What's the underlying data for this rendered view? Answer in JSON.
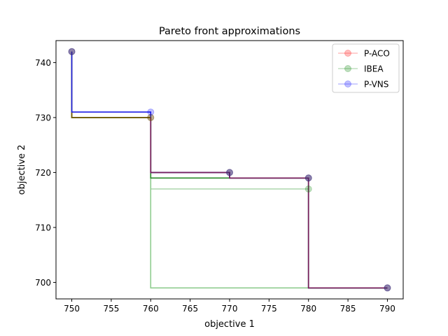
{
  "chart_data": {
    "type": "line",
    "title": "Pareto front approximations",
    "xlabel": "objective 1",
    "ylabel": "objective 2",
    "xlim": [
      748,
      792
    ],
    "ylim": [
      697,
      744
    ],
    "xticks": [
      750,
      755,
      760,
      765,
      770,
      775,
      780,
      785,
      790
    ],
    "yticks": [
      700,
      710,
      720,
      730,
      740
    ],
    "grid": false,
    "legend_position": "top-right",
    "step_lines": [
      {
        "color": "#b3d9b3",
        "points": [
          [
            750,
            742
          ],
          [
            750,
            730
          ],
          [
            760,
            730
          ],
          [
            760,
            717
          ],
          [
            780,
            717
          ],
          [
            780,
            699
          ],
          [
            790,
            699
          ]
        ]
      },
      {
        "color": "#8fcc8f",
        "points": [
          [
            750,
            742
          ],
          [
            750,
            730
          ],
          [
            760,
            730
          ],
          [
            760,
            699
          ],
          [
            780,
            699
          ],
          [
            780,
            699
          ],
          [
            790,
            699
          ]
        ]
      },
      {
        "color": "#2a8a2a",
        "points": [
          [
            750,
            742
          ],
          [
            750,
            730
          ],
          [
            760,
            730
          ],
          [
            760,
            719
          ],
          [
            780,
            719
          ],
          [
            780,
            699
          ],
          [
            790,
            699
          ]
        ]
      },
      {
        "color": "#7a5200",
        "points": [
          [
            750,
            742
          ],
          [
            750,
            730
          ],
          [
            760,
            730
          ],
          [
            760,
            720
          ],
          [
            770,
            720
          ],
          [
            770,
            719
          ],
          [
            780,
            719
          ],
          [
            780,
            699
          ],
          [
            790,
            699
          ]
        ]
      },
      {
        "color": "#1f1fe6",
        "points": [
          [
            750,
            742
          ],
          [
            750,
            731
          ],
          [
            760,
            731
          ],
          [
            760,
            720
          ],
          [
            770,
            720
          ],
          [
            770,
            719
          ],
          [
            780,
            719
          ],
          [
            780,
            699
          ],
          [
            790,
            699
          ]
        ]
      },
      {
        "color": "#7a1f5c",
        "points": [
          [
            760,
            730
          ],
          [
            760,
            720
          ],
          [
            770,
            720
          ],
          [
            770,
            719
          ],
          [
            780,
            719
          ],
          [
            780,
            699
          ],
          [
            790,
            699
          ]
        ]
      }
    ],
    "series": [
      {
        "name": "P-ACO",
        "color": "#ff0000",
        "points": [
          [
            750,
            742
          ],
          [
            760,
            730
          ],
          [
            770,
            720
          ],
          [
            780,
            719
          ],
          [
            790,
            699
          ]
        ]
      },
      {
        "name": "IBEA",
        "color": "#008000",
        "points": [
          [
            750,
            742
          ],
          [
            760,
            730
          ],
          [
            770,
            720
          ],
          [
            780,
            719
          ],
          [
            780,
            717
          ],
          [
            790,
            699
          ]
        ]
      },
      {
        "name": "P-VNS",
        "color": "#0000ff",
        "points": [
          [
            750,
            742
          ],
          [
            760,
            731
          ],
          [
            770,
            720
          ],
          [
            780,
            719
          ],
          [
            790,
            699
          ]
        ]
      }
    ]
  }
}
